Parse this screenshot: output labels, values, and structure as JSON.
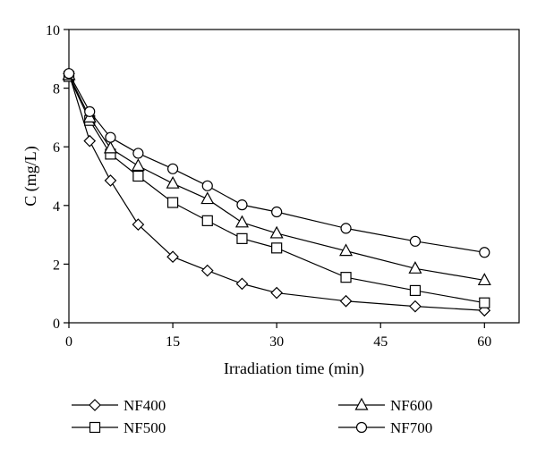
{
  "chart_data": {
    "type": "line",
    "title": "",
    "xlabel": "Irradiation time (min)",
    "ylabel": "C (mg/L)",
    "xlim": [
      0,
      65
    ],
    "ylim": [
      0,
      10
    ],
    "xticks": [
      0,
      15,
      30,
      45,
      60
    ],
    "yticks": [
      0,
      2,
      4,
      6,
      8,
      10
    ],
    "grid": false,
    "legend_position": "bottom",
    "series": [
      {
        "name": "NF400",
        "marker": "diamond",
        "x": [
          0,
          3,
          6,
          10,
          15,
          20,
          25,
          30,
          40,
          50,
          60
        ],
        "y": [
          8.5,
          6.2,
          4.85,
          3.35,
          2.25,
          1.78,
          1.33,
          1.02,
          0.74,
          0.56,
          0.42
        ]
      },
      {
        "name": "NF500",
        "marker": "square",
        "x": [
          0,
          3,
          6,
          10,
          15,
          20,
          25,
          30,
          40,
          50,
          60
        ],
        "y": [
          8.4,
          6.9,
          5.75,
          5.0,
          4.1,
          3.48,
          2.87,
          2.55,
          1.55,
          1.1,
          0.68
        ]
      },
      {
        "name": "NF600",
        "marker": "triangle",
        "x": [
          0,
          3,
          6,
          10,
          15,
          20,
          25,
          30,
          40,
          50,
          60
        ],
        "y": [
          8.45,
          7.0,
          5.95,
          5.35,
          4.75,
          4.22,
          3.42,
          3.05,
          2.45,
          1.85,
          1.45
        ]
      },
      {
        "name": "NF700",
        "marker": "circle",
        "x": [
          0,
          3,
          6,
          10,
          15,
          20,
          25,
          30,
          40,
          50,
          60
        ],
        "y": [
          8.5,
          7.2,
          6.32,
          5.78,
          5.25,
          4.67,
          4.02,
          3.78,
          3.22,
          2.78,
          2.4
        ]
      }
    ]
  }
}
